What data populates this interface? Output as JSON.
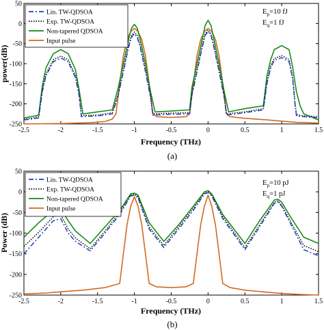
{
  "chart_data": [
    {
      "type": "line",
      "caption": "(a)",
      "xlabel": "Frequency (THz)",
      "ylabel": "power(dB)",
      "xlim": [
        -2.5,
        1.5
      ],
      "ylim": [
        -250,
        50
      ],
      "xticks": [
        "-2.5",
        "-2",
        "-1.5",
        "-1",
        "-0.5",
        "0",
        "0.5",
        "1",
        "1.5"
      ],
      "yticks": [
        "50",
        "0",
        "-50",
        "-100",
        "-150",
        "-200",
        "-250"
      ],
      "annotation": {
        "ep_main": "E",
        "ep_sub": "p",
        "ep_val": "=10 fJ",
        "eq_main": "E",
        "eq_sub": "q",
        "eq_val": "=1 fJ"
      },
      "legend_position": "top-left",
      "series": [
        {
          "name": "Lin. TW-QDSOA",
          "color": "#1f3fbf",
          "style": "dashdot",
          "x": [
            -2.5,
            -2.4,
            -2.3,
            -2.25,
            -2.2,
            -2.1,
            -2.0,
            -1.9,
            -1.8,
            -1.75,
            -1.72,
            -1.5,
            -1.3,
            -1.22,
            -1.15,
            -1.08,
            -1.04,
            -1.0,
            -0.96,
            -0.92,
            -0.85,
            -0.78,
            -0.75,
            -0.5,
            -0.25,
            -0.22,
            -0.15,
            -0.08,
            -0.04,
            0.0,
            0.04,
            0.08,
            0.15,
            0.22,
            0.25,
            0.5,
            0.75,
            0.8,
            0.85,
            0.9,
            1.0,
            1.1,
            1.15,
            1.18,
            1.2,
            1.3,
            1.5
          ],
          "y": [
            -240,
            -238,
            -235,
            -170,
            -130,
            -95,
            -86,
            -95,
            -135,
            -180,
            -232,
            -230,
            -225,
            -180,
            -120,
            -60,
            -35,
            -25,
            -35,
            -60,
            -120,
            -185,
            -228,
            -226,
            -225,
            -180,
            -120,
            -60,
            -30,
            -20,
            -30,
            -60,
            -120,
            -185,
            -228,
            -222,
            -215,
            -150,
            -110,
            -92,
            -85,
            -95,
            -140,
            -200,
            -230,
            -232,
            -235
          ]
        },
        {
          "name": "Exp. TW-QDSOA",
          "color": "#000000",
          "style": "dotted",
          "x": [
            -2.5,
            -2.4,
            -2.3,
            -2.25,
            -2.2,
            -2.1,
            -2.0,
            -1.9,
            -1.8,
            -1.75,
            -1.72,
            -1.5,
            -1.3,
            -1.22,
            -1.15,
            -1.08,
            -1.04,
            -1.0,
            -0.96,
            -0.92,
            -0.85,
            -0.78,
            -0.75,
            -0.5,
            -0.25,
            -0.22,
            -0.15,
            -0.08,
            -0.04,
            0.0,
            0.04,
            0.08,
            0.15,
            0.22,
            0.25,
            0.5,
            0.75,
            0.8,
            0.85,
            0.9,
            1.0,
            1.1,
            1.15,
            1.18,
            1.2,
            1.3,
            1.5
          ],
          "y": [
            -238,
            -236,
            -232,
            -165,
            -125,
            -90,
            -81,
            -90,
            -130,
            -175,
            -229,
            -228,
            -222,
            -175,
            -115,
            -55,
            -30,
            -21,
            -30,
            -55,
            -115,
            -180,
            -225,
            -223,
            -222,
            -175,
            -115,
            -55,
            -26,
            -16,
            -26,
            -55,
            -115,
            -180,
            -225,
            -220,
            -212,
            -145,
            -105,
            -87,
            -80,
            -90,
            -135,
            -195,
            -227,
            -230,
            -232
          ]
        },
        {
          "name": "Non-tapered QDSOA",
          "color": "#1a8a1a",
          "style": "solid",
          "x": [
            -2.5,
            -2.4,
            -2.3,
            -2.25,
            -2.2,
            -2.1,
            -2.0,
            -1.9,
            -1.8,
            -1.75,
            -1.7,
            -1.5,
            -1.3,
            -1.22,
            -1.15,
            -1.08,
            -1.04,
            -1.0,
            -0.96,
            -0.92,
            -0.85,
            -0.78,
            -0.72,
            -0.5,
            -0.25,
            -0.22,
            -0.15,
            -0.08,
            -0.04,
            0.0,
            0.04,
            0.08,
            0.15,
            0.22,
            0.28,
            0.5,
            0.75,
            0.8,
            0.85,
            0.9,
            1.0,
            1.1,
            1.15,
            1.2,
            1.25,
            1.3,
            1.5
          ],
          "y": [
            -235,
            -232,
            -228,
            -155,
            -110,
            -75,
            -65,
            -75,
            -115,
            -165,
            -225,
            -220,
            -215,
            -160,
            -100,
            -40,
            -12,
            -2,
            -12,
            -40,
            -100,
            -170,
            -220,
            -218,
            -215,
            -160,
            -100,
            -40,
            -5,
            8,
            -5,
            -40,
            -100,
            -170,
            -220,
            -212,
            -205,
            -130,
            -90,
            -65,
            -55,
            -65,
            -110,
            -170,
            -205,
            -225,
            -240
          ]
        },
        {
          "name": "Input pulse",
          "color": "#d2691e",
          "style": "solid",
          "x": [
            -2.5,
            -2.0,
            -1.6,
            -1.4,
            -1.3,
            -1.25,
            -1.2,
            -1.15,
            -1.1,
            -1.05,
            -1.0,
            -0.95,
            -0.9,
            -0.85,
            -0.8,
            -0.75,
            -0.7,
            -0.5,
            -0.3,
            -0.25,
            -0.2,
            -0.15,
            -0.1,
            -0.05,
            0.0,
            0.05,
            0.1,
            0.15,
            0.2,
            0.25,
            0.3,
            0.5,
            0.8,
            1.0,
            1.2,
            1.5
          ],
          "y": [
            -250,
            -249,
            -247,
            -244,
            -238,
            -225,
            -150,
            -80,
            -40,
            -20,
            -12,
            -20,
            -40,
            -80,
            -150,
            -225,
            -232,
            -234,
            -232,
            -225,
            -150,
            -80,
            -40,
            -20,
            -12,
            -20,
            -40,
            -80,
            -150,
            -225,
            -232,
            -236,
            -240,
            -243,
            -246,
            -248
          ]
        }
      ]
    },
    {
      "type": "line",
      "caption": "(b)",
      "xlabel": "Frequency (THz)",
      "ylabel": "Power (dB)",
      "xlim": [
        -2.5,
        1.5
      ],
      "ylim": [
        -250,
        50
      ],
      "xticks": [
        "-2.5",
        "-2",
        "-1.5",
        "-1",
        "-0.5",
        "0",
        "0.5",
        "1",
        "1.5"
      ],
      "yticks": [
        "50",
        "0",
        "-50",
        "-100",
        "-150",
        "-200",
        "-250"
      ],
      "annotation": {
        "ep_main": "E",
        "ep_sub": "p",
        "ep_val": "=10 pJ",
        "eq_main": "E",
        "eq_sub": "q",
        "eq_val": "=1 pJ"
      },
      "legend_position": "top-left",
      "series": [
        {
          "name": "Lin. TW-QDSOA",
          "color": "#1f3fbf",
          "style": "dashdot",
          "x": [
            -2.5,
            -2.3,
            -2.1,
            -2.0,
            -1.9,
            -1.8,
            -1.6,
            -1.4,
            -1.2,
            -1.05,
            -1.0,
            -0.95,
            -0.8,
            -0.6,
            -0.4,
            -0.2,
            -0.05,
            0.0,
            0.05,
            0.2,
            0.5,
            0.7,
            0.9,
            0.95,
            1.0,
            1.1,
            1.3,
            1.5
          ],
          "y": [
            -150,
            -110,
            -70,
            -65,
            -100,
            -120,
            -143,
            -100,
            -55,
            -10,
            -8,
            -15,
            -90,
            -135,
            -90,
            -45,
            -5,
            -2,
            -10,
            -65,
            -140,
            -85,
            -28,
            -25,
            -35,
            -70,
            -140,
            -155
          ]
        },
        {
          "name": "Exp. TW-QDSOA",
          "color": "#000000",
          "style": "dotted",
          "x": [
            -2.5,
            -2.3,
            -2.1,
            -2.0,
            -1.9,
            -1.8,
            -1.6,
            -1.4,
            -1.2,
            -1.05,
            -1.0,
            -0.95,
            -0.8,
            -0.6,
            -0.4,
            -0.2,
            -0.05,
            0.0,
            0.05,
            0.2,
            0.5,
            0.7,
            0.9,
            0.95,
            1.0,
            1.1,
            1.3,
            1.5
          ],
          "y": [
            -132,
            -98,
            -60,
            -55,
            -90,
            -112,
            -138,
            -95,
            -50,
            -8,
            -6,
            -12,
            -85,
            -130,
            -85,
            -40,
            -3,
            0,
            -8,
            -60,
            -135,
            -80,
            -25,
            -22,
            -32,
            -65,
            -130,
            -145
          ]
        },
        {
          "name": "Non-tapered QDSOA",
          "color": "#1a8a1a",
          "style": "solid",
          "x": [
            -2.5,
            -2.3,
            -2.1,
            -2.0,
            -1.9,
            -1.8,
            -1.6,
            -1.4,
            -1.2,
            -1.05,
            -1.0,
            -0.95,
            -0.8,
            -0.6,
            -0.4,
            -0.2,
            -0.05,
            0.0,
            0.05,
            0.2,
            0.5,
            0.7,
            0.9,
            0.95,
            1.0,
            1.1,
            1.3,
            1.5
          ],
          "y": [
            -110,
            -75,
            -45,
            -40,
            -70,
            -95,
            -125,
            -85,
            -45,
            -5,
            -3,
            -8,
            -75,
            -120,
            -80,
            -35,
            0,
            3,
            -5,
            -55,
            -125,
            -70,
            -20,
            -18,
            -25,
            -55,
            -110,
            -125
          ]
        },
        {
          "name": "Input pulse",
          "color": "#d2691e",
          "style": "solid",
          "x": [
            -2.5,
            -2.2,
            -2.0,
            -1.7,
            -1.4,
            -1.2,
            -1.15,
            -1.1,
            -1.05,
            -1.0,
            -0.95,
            -0.9,
            -0.85,
            -0.8,
            -0.7,
            -0.5,
            -0.3,
            -0.2,
            -0.15,
            -0.1,
            -0.05,
            0.0,
            0.05,
            0.1,
            0.15,
            0.2,
            0.3,
            0.5,
            0.8,
            1.0,
            1.2,
            1.5
          ],
          "y": [
            -247,
            -245,
            -242,
            -238,
            -232,
            -222,
            -150,
            -80,
            -35,
            -12,
            -35,
            -80,
            -150,
            -222,
            -230,
            -232,
            -230,
            -222,
            -150,
            -80,
            -35,
            -8,
            -35,
            -80,
            -150,
            -222,
            -232,
            -238,
            -243,
            -246,
            -248,
            -250
          ]
        }
      ]
    }
  ]
}
